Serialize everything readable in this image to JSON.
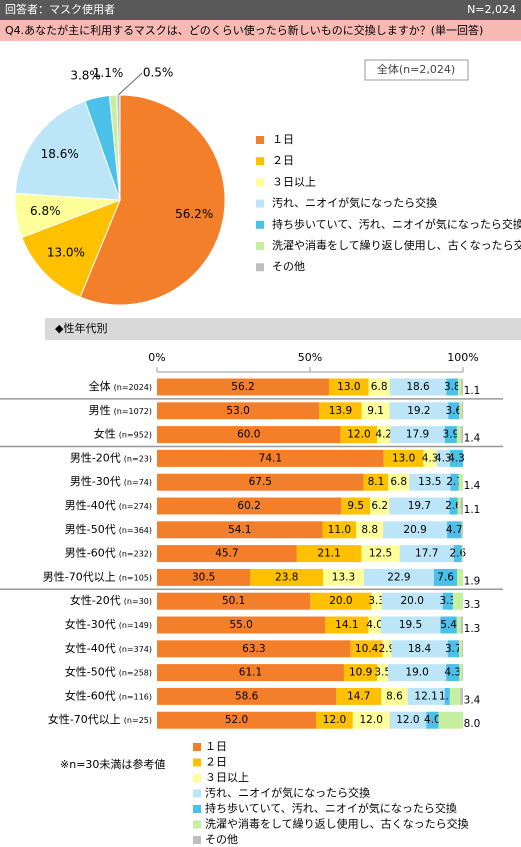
{
  "header": {
    "respondents": "回答者：マスク使用者",
    "n": "N=2,024",
    "question": "Q4.あなたが主に利用するマスクは、どのくらい使ったら新しいものに交換しますか？(単一回答)",
    "section": "◆性年代別",
    "note": "※n=30未満は参考値"
  },
  "chart_data": [
    {
      "type": "pie",
      "subtitle": "全体(n=2,024)",
      "categories": [
        "１日",
        "２日",
        "３日以上",
        "汚れ、ニオイが気になったら交換",
        "持ち歩いていて、汚れ、ニオイが気になったら交換",
        "洗濯や消毒をして繰り返し使用し、古くなったら交換",
        "その他"
      ],
      "values": [
        56.2,
        13.0,
        6.8,
        18.6,
        3.8,
        1.1,
        0.5
      ],
      "value_labels": [
        "56.2%",
        "13.0%",
        "6.8%",
        "18.6%",
        "3.8%",
        "1.1%",
        "0.5%"
      ],
      "colors": [
        "#f47f2a",
        "#ffc000",
        "#ffff99",
        "#bde5f8",
        "#4bc0e8",
        "#c6efa0",
        "#bfbfbf"
      ]
    },
    {
      "type": "stacked_barh",
      "categories": [
        "全体",
        "男性",
        "女性",
        "男性-20代",
        "男性-30代",
        "男性-40代",
        "男性-50代",
        "男性-60代",
        "男性-70代以上",
        "女性-20代",
        "女性-30代",
        "女性-40代",
        "女性-50代",
        "女性-60代",
        "女性-70代以上"
      ],
      "category_n": [
        "(n=2024)",
        "(n=1072)",
        "(n=952)",
        "(n=23)",
        "(n=74)",
        "(n=274)",
        "(n=364)",
        "(n=232)",
        "(n=105)",
        "(n=30)",
        "(n=149)",
        "(n=374)",
        "(n=258)",
        "(n=116)",
        "(n=25)"
      ],
      "xlim": [
        0,
        100
      ],
      "xticks": [
        {
          "value": 0,
          "label": "0%"
        },
        {
          "value": 50,
          "label": "50%"
        },
        {
          "value": 100,
          "label": "100%"
        }
      ],
      "series": [
        {
          "name": "１日",
          "color": "#f47f2a",
          "values": [
            56.2,
            53.0,
            60.0,
            74.1,
            67.5,
            60.2,
            54.1,
            45.7,
            30.5,
            50.1,
            55.0,
            63.3,
            61.1,
            58.6,
            52.0
          ],
          "value_labels": [
            "56.2",
            "53.0",
            "60.0",
            "74.1",
            "67.5",
            "60.2",
            "54.1",
            "45.7",
            "30.5",
            "50.1",
            "55.0",
            "63.3",
            "61.1",
            "58.6",
            "52.0"
          ]
        },
        {
          "name": "２日",
          "color": "#ffc000",
          "values": [
            13.0,
            13.9,
            12.0,
            13.0,
            8.1,
            9.5,
            11.0,
            21.1,
            23.8,
            20.0,
            14.1,
            10.4,
            10.9,
            14.7,
            12.0
          ],
          "value_labels": [
            "13.0",
            "13.9",
            "12.0",
            "13.0",
            "8.1",
            "9.5",
            "11.0",
            "21.1",
            "23.8",
            "20.0",
            "14.1",
            "10.4",
            "10.9",
            "14.7",
            "12.0"
          ]
        },
        {
          "name": "３日以上",
          "color": "#ffff99",
          "values": [
            6.8,
            9.1,
            4.2,
            4.3,
            6.8,
            6.2,
            8.8,
            12.5,
            13.3,
            3.3,
            4.0,
            2.9,
            3.5,
            8.6,
            12.0
          ],
          "value_labels": [
            "6.8",
            "9.1",
            "4.2",
            "4.3",
            "6.8",
            "6.2",
            "8.8",
            "12.5",
            "13.3",
            "3.3",
            "4.0",
            "2.9",
            "3.5",
            "8.6",
            "12.0"
          ]
        },
        {
          "name": "汚れ、ニオイが気になったら交換",
          "color": "#bde5f8",
          "values": [
            18.6,
            19.2,
            17.9,
            4.3,
            13.5,
            19.7,
            20.9,
            17.7,
            22.9,
            20.0,
            19.5,
            18.4,
            19.0,
            12.1,
            12.0
          ],
          "value_labels": [
            "18.6",
            "19.2",
            "17.9",
            "4.3",
            "13.5",
            "19.7",
            "20.9",
            "17.7",
            "22.9",
            "20.0",
            "19.5",
            "18.4",
            "19.0",
            "12.1",
            "12.0"
          ]
        },
        {
          "name": "持ち歩いていて、汚れ、ニオイが気になったら交換",
          "color": "#4bc0e8",
          "values": [
            3.8,
            3.6,
            3.9,
            4.3,
            2.7,
            2.6,
            4.7,
            2.6,
            7.6,
            3.3,
            5.4,
            3.7,
            4.3,
            1.7,
            4.0
          ],
          "value_labels": [
            "3.8",
            "3.6",
            "3.9",
            "4.3",
            "2.7",
            "2.6",
            "4.7",
            "2.6",
            "7.6",
            "3.3",
            "5.4",
            "3.7",
            "4.3",
            "1.7",
            "4.0"
          ]
        },
        {
          "name": "洗濯や消毒をして繰り返し使用し、古くなったら交換",
          "color": "#c6efa0",
          "values": [
            1.1,
            0.8,
            1.4,
            0,
            1.4,
            1.1,
            0.3,
            0.4,
            1.9,
            3.3,
            1.3,
            1.0,
            1.0,
            3.4,
            8.0
          ],
          "value_labels": [
            "1.1",
            null,
            "1.4",
            null,
            "1.4",
            "1.1",
            null,
            null,
            "1.9",
            "3.3",
            "1.3",
            null,
            null,
            "3.4",
            "8.0"
          ]
        },
        {
          "name": "その他",
          "color": "#bfbfbf",
          "values": [
            0.5,
            0.4,
            0.6,
            0,
            0,
            0.7,
            0.2,
            0,
            0,
            0,
            0.7,
            0.3,
            0.2,
            0.9,
            0
          ]
        }
      ]
    }
  ]
}
